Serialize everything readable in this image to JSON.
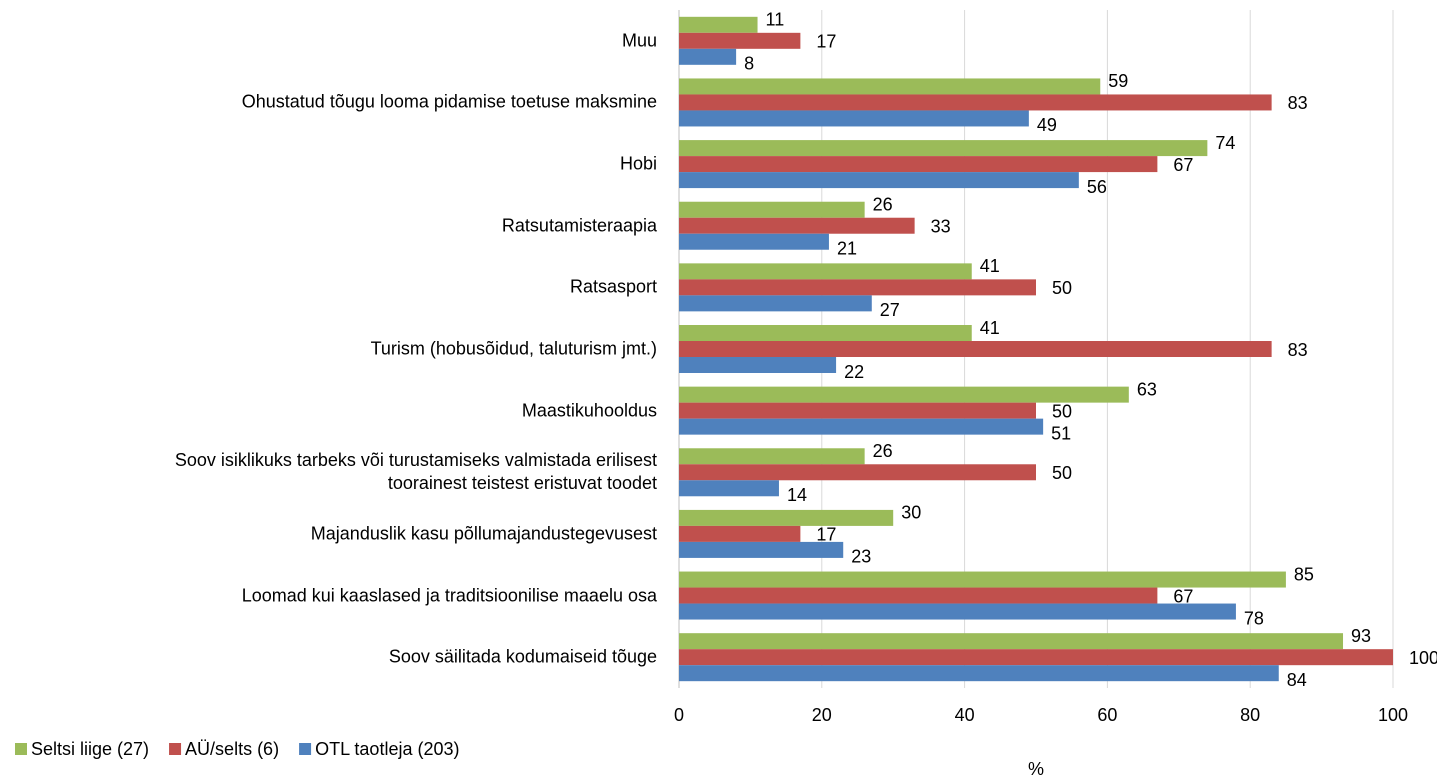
{
  "chart_data": {
    "type": "bar",
    "orientation": "horizontal",
    "categories": [
      "Muu",
      "Ohustatud tõugu looma pidamise toetuse maksmine",
      "Hobi",
      "Ratsutamisteraapia",
      "Ratsasport",
      "Turism (hobusõidud, taluturism jmt.)",
      "Maastikuhooldus",
      "Soov isiklikuks tarbeks või turustamiseks valmistada erilisest\ntoorainest teistest eristuvat toodet",
      "Majanduslik kasu põllumajandustegevusest",
      "Loomad kui kaaslased ja traditsioonilise maaelu osa",
      "Soov säilitada kodumaiseid tõuge"
    ],
    "series": [
      {
        "name": "Seltsi liige (27)",
        "color": "#9bbb59",
        "values": [
          11,
          59,
          74,
          26,
          41,
          41,
          63,
          26,
          30,
          85,
          93
        ]
      },
      {
        "name": "AÜ/selts (6)",
        "color": "#c0504d",
        "values": [
          17,
          83,
          67,
          33,
          50,
          83,
          50,
          50,
          17,
          67,
          100
        ]
      },
      {
        "name": "OTL taotleja (203)",
        "color": "#4f81bd",
        "values": [
          8,
          49,
          56,
          21,
          27,
          22,
          51,
          14,
          23,
          78,
          84
        ]
      }
    ],
    "xlabel": "%",
    "xlim": [
      0,
      100
    ],
    "xticks": [
      0,
      20,
      40,
      60,
      80,
      100
    ],
    "grid": true,
    "legend": "bottom-left"
  }
}
